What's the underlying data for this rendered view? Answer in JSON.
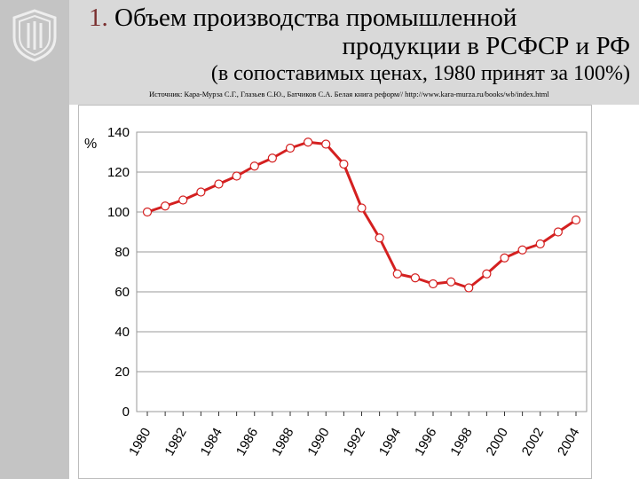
{
  "header": {
    "title_number": "1.",
    "title_line1": "Объем производства промышленной",
    "title_line2": "продукции в РСФСР  и РФ",
    "subtitle": "(в сопоставимых ценах, 1980 принят за 100%)",
    "source": "Источник: Кара-Мурза С.Г., Глазьев С.Ю., Батчиков С.А. Белая книга реформ// http://www.kara-murza.ru/books/wb/index.html"
  },
  "colors": {
    "line": "#d42020",
    "marker_fill": "#ffffff",
    "marker_stroke": "#d42020",
    "grid": "#9a9a9a",
    "header_band": "#d9d9d9",
    "left_band": "#c4c4c4"
  },
  "chart_data": {
    "type": "line",
    "title": "",
    "xlabel": "",
    "ylabel": "%",
    "ylim": [
      0,
      140
    ],
    "yticks": [
      "0",
      "20",
      "40",
      "60",
      "80",
      "100",
      "120",
      "140"
    ],
    "xtick_labels": [
      "1980",
      "1982",
      "1984",
      "1986",
      "1988",
      "1990",
      "1992",
      "1994",
      "1996",
      "1998",
      "2000",
      "2002",
      "2004"
    ],
    "grid": "horizontal",
    "x": [
      1980,
      1981,
      1982,
      1983,
      1984,
      1985,
      1986,
      1987,
      1988,
      1989,
      1990,
      1991,
      1992,
      1993,
      1994,
      1995,
      1996,
      1997,
      1998,
      1999,
      2000,
      2001,
      2002,
      2003,
      2004
    ],
    "series": [
      {
        "values": [
          100,
          103,
          106,
          110,
          114,
          118,
          123,
          127,
          132,
          135,
          134,
          124,
          102,
          87,
          69,
          67,
          64,
          65,
          62,
          69,
          77,
          81,
          84,
          90,
          96
        ]
      }
    ]
  }
}
